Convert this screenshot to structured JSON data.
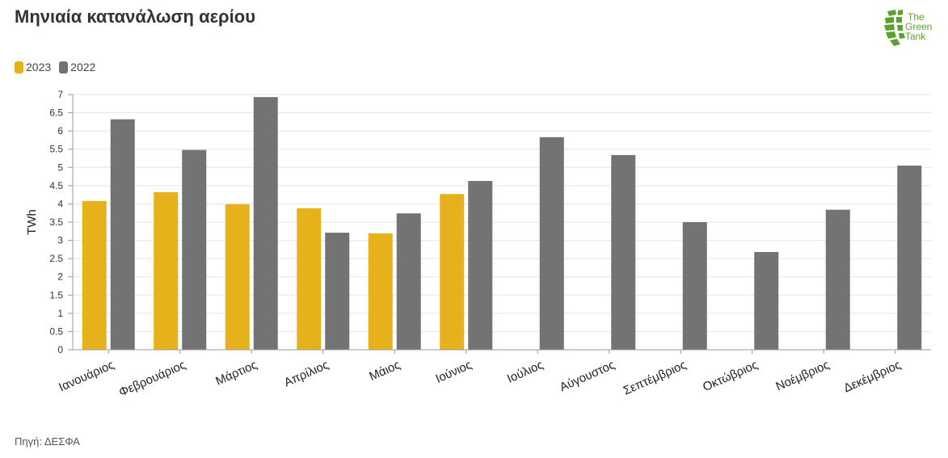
{
  "title": "Μηνιαία κατανάλωση αερίου",
  "source": "Πηγή: ΔΕΣΦΑ",
  "logo": {
    "line1": "The",
    "line2": "Green",
    "line3": "Tank"
  },
  "colors": {
    "s2023": "#e6b11b",
    "s2022": "#737373",
    "grid": "#e5e5e5",
    "axis": "#999999",
    "logo_green": "#5aa22d"
  },
  "chart_data": {
    "type": "bar",
    "title": "Μηνιαία κατανάλωση αερίου",
    "ylabel": "TWh",
    "xlabel": "",
    "ylim": [
      0,
      7
    ],
    "yticks": [
      "0",
      "0.5",
      "1",
      "1.5",
      "2",
      "2.5",
      "3",
      "3.5",
      "4",
      "4.5",
      "5",
      "5.5",
      "6",
      "6.5",
      "7"
    ],
    "grid": true,
    "legend": "top-left",
    "categories": [
      "Ιανουάριος",
      "Φεβρουάριος",
      "Μάρτιος",
      "Απρίλιος",
      "Μάιος",
      "Ιούνιος",
      "Ιούλιος",
      "Αύγουστος",
      "Σεπτέμβριος",
      "Οκτώβριος",
      "Νοέμβριος",
      "Δεκέμβριος"
    ],
    "series": [
      {
        "name": "2023",
        "values": [
          4.08,
          4.32,
          3.99,
          3.88,
          3.19,
          4.27,
          null,
          null,
          null,
          null,
          null,
          null
        ]
      },
      {
        "name": "2022",
        "values": [
          6.32,
          5.48,
          6.93,
          3.21,
          3.74,
          4.63,
          5.83,
          5.34,
          3.5,
          2.68,
          3.84,
          5.05
        ]
      }
    ]
  }
}
